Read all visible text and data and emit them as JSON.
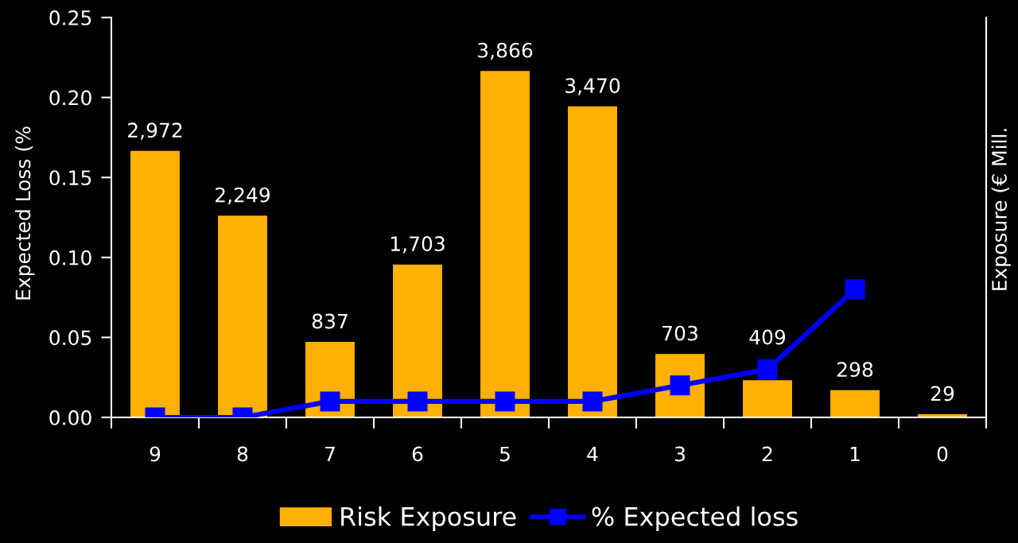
{
  "chart_data": {
    "type": "bar",
    "ylabel": "Expected Loss (%",
    "y2label": "Exposure (€ Mill.",
    "categories": [
      "9",
      "8",
      "7",
      "6",
      "5",
      "4",
      "3",
      "2",
      "1",
      "0"
    ],
    "series": [
      {
        "name": "Risk Exposure",
        "axis": "y2",
        "color": "#ffb000",
        "values": [
          2972,
          2249,
          837,
          1703,
          3866,
          3470,
          703,
          409,
          298,
          29
        ],
        "value_labels": [
          "2,972",
          "2,249",
          "837",
          "1,703",
          "3,866",
          "3,470",
          "703",
          "409",
          "298",
          "29"
        ]
      },
      {
        "name": "% Expected loss",
        "type": "line",
        "axis": "y",
        "color": "#0000ff",
        "marker": "square",
        "line_style": "solid",
        "values": [
          0.0,
          0.0,
          0.01,
          0.01,
          0.01,
          0.01,
          0.02,
          0.03,
          0.08,
          null
        ]
      }
    ],
    "ylim": [
      0,
      0.25
    ],
    "yticks": [
      {
        "value": 0,
        "label": "0.00"
      },
      0.05,
      {
        "value": 0.1,
        "label": "0.10"
      },
      0.15,
      {
        "value": 0.2,
        "label": "0.20"
      },
      0.25
    ],
    "y2lim": [
      0,
      4470
    ],
    "legend": "bottom",
    "grid": false
  }
}
